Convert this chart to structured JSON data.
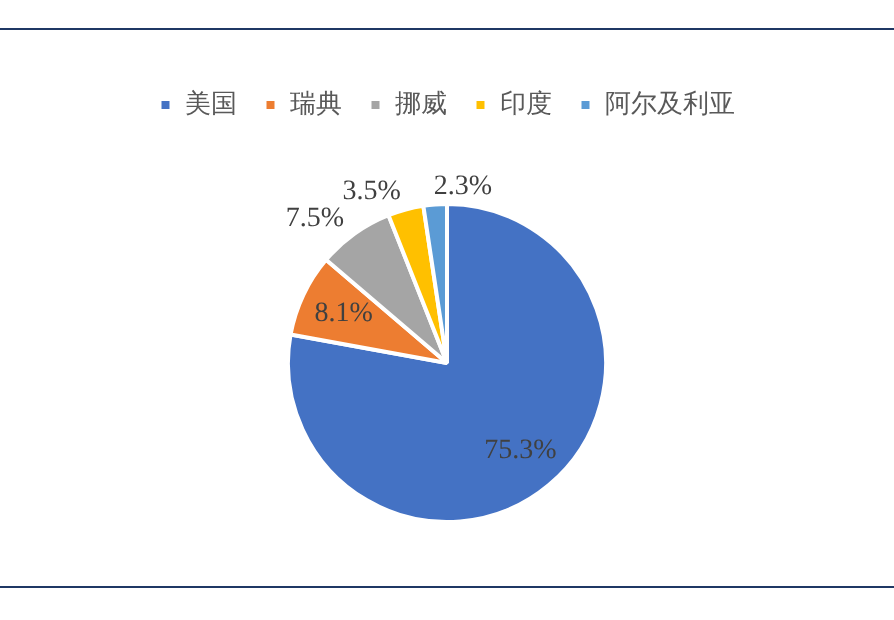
{
  "chart_data": {
    "type": "pie",
    "categories": [
      "美国",
      "瑞典",
      "挪威",
      "印度",
      "阿尔及利亚"
    ],
    "values": [
      75.3,
      8.1,
      7.5,
      3.5,
      2.3
    ],
    "value_labels": [
      "75.3%",
      "8.1%",
      "7.5%",
      "3.5%",
      "2.3%"
    ],
    "colors": [
      "#4472c4",
      "#ed7d31",
      "#a5a5a5",
      "#ffc000",
      "#5b9bd5"
    ],
    "legend": "top"
  }
}
